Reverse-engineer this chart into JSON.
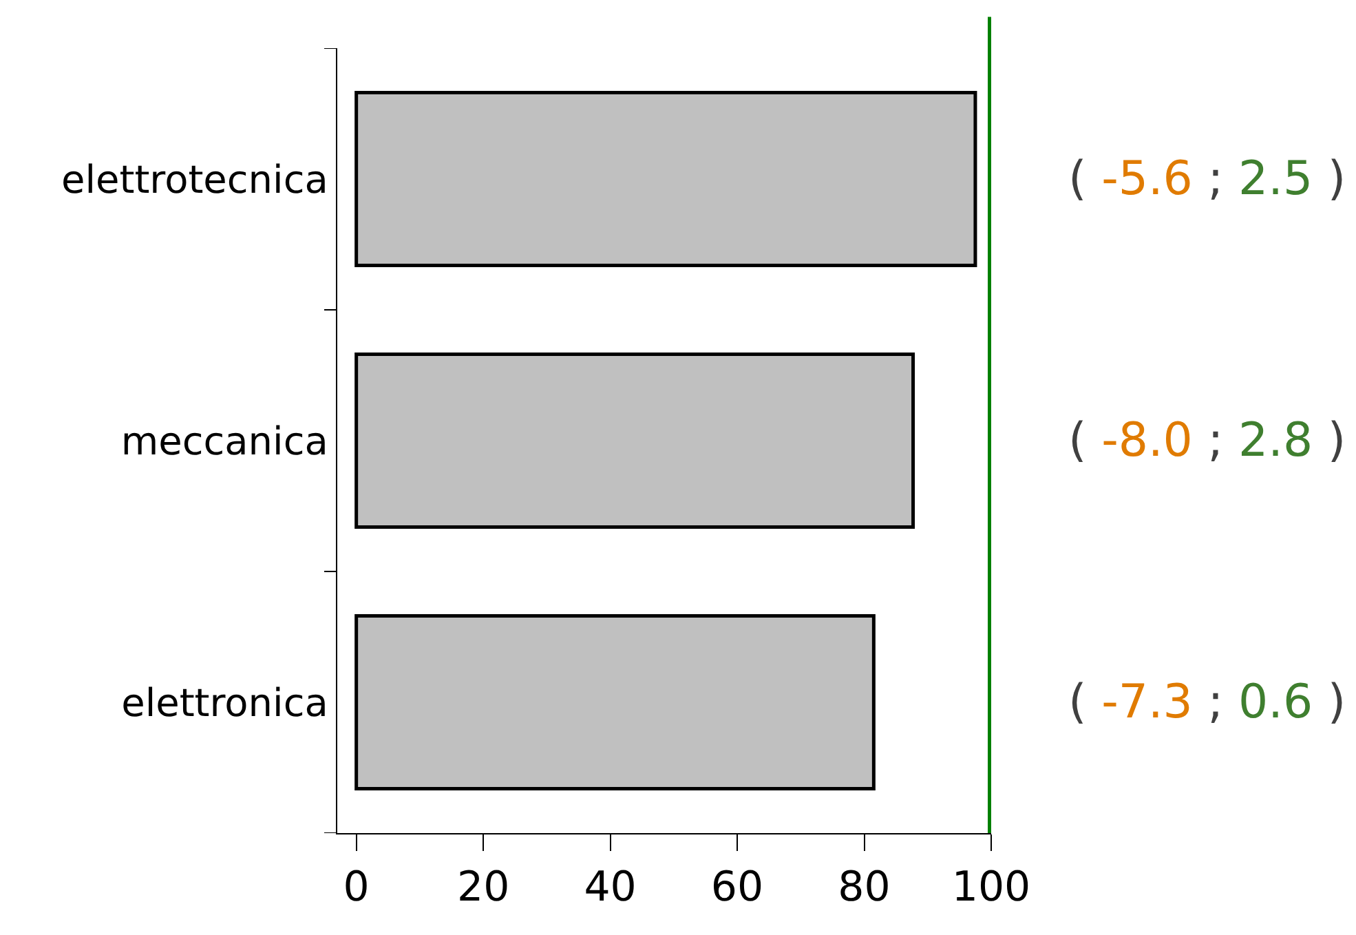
{
  "chart_data": {
    "type": "bar",
    "orientation": "horizontal",
    "categories": [
      "elettrotecnica",
      "meccanica",
      "elettronica"
    ],
    "values": [
      97.5,
      87.7,
      81.5
    ],
    "color": "#c0c0c0",
    "xlim": [
      -3,
      100
    ],
    "xticks": [
      0,
      20,
      40,
      60,
      80,
      100
    ],
    "ref_lines": [
      {
        "axis": "x",
        "value": 100,
        "color": "#008000"
      }
    ],
    "annotations": [
      "( -5.6 ; 2.5 )",
      "( -8.0 ; 2.8 )",
      "( -7.3 ; 0.6 )"
    ]
  }
}
